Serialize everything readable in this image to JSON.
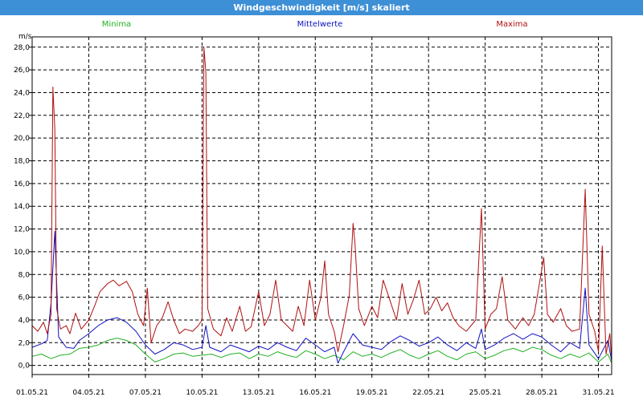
{
  "window": {
    "title": "Windgeschwindigkeit [m/s] skaliert"
  },
  "chart_data": {
    "type": "line",
    "title": "Windgeschwindigkeit [m/s] skaliert",
    "ylabel": "m/s",
    "xlabel": "",
    "ylim": [
      -0.8,
      28.9
    ],
    "xlim": [
      0,
      30.7
    ],
    "grid": true,
    "legend_placement": "top",
    "y_ticks": [
      "0,0",
      "2,0",
      "4,0",
      "6,0",
      "8,0",
      "10,0",
      "12,0",
      "14,0",
      "16,0",
      "18,0",
      "20,0",
      "22,0",
      "24,0",
      "26,0",
      "28,0"
    ],
    "y_tick_values": [
      0,
      2,
      4,
      6,
      8,
      10,
      12,
      14,
      16,
      18,
      20,
      22,
      24,
      26,
      28
    ],
    "x_ticks": [
      "01.05.21",
      "04.05.21",
      "07.05.21",
      "10.05.21",
      "13.05.21",
      "16.05.21",
      "19.05.21",
      "22.05.21",
      "25.05.21",
      "28.05.21",
      "31.05.21"
    ],
    "x_tick_values": [
      0,
      3,
      6,
      9,
      12,
      15,
      18,
      21,
      24,
      27,
      30
    ],
    "series": [
      {
        "name": "Minima",
        "color": "#22b022",
        "points": [
          [
            0,
            0.8
          ],
          [
            0.5,
            1.0
          ],
          [
            1,
            0.6
          ],
          [
            1.5,
            0.9
          ],
          [
            2,
            1.0
          ],
          [
            2.5,
            1.5
          ],
          [
            3,
            1.6
          ],
          [
            3.5,
            1.8
          ],
          [
            4,
            2.2
          ],
          [
            4.5,
            2.4
          ],
          [
            5,
            2.2
          ],
          [
            5.5,
            1.8
          ],
          [
            6,
            1.0
          ],
          [
            6.5,
            0.3
          ],
          [
            7,
            0.6
          ],
          [
            7.5,
            1.0
          ],
          [
            8,
            1.1
          ],
          [
            8.5,
            0.8
          ],
          [
            9,
            0.9
          ],
          [
            9.5,
            1.0
          ],
          [
            10,
            0.7
          ],
          [
            10.5,
            1.0
          ],
          [
            11,
            1.1
          ],
          [
            11.5,
            0.6
          ],
          [
            12,
            1.0
          ],
          [
            12.5,
            0.8
          ],
          [
            13,
            1.2
          ],
          [
            13.5,
            0.9
          ],
          [
            14,
            0.7
          ],
          [
            14.5,
            1.3
          ],
          [
            15,
            1.0
          ],
          [
            15.5,
            0.6
          ],
          [
            16,
            0.9
          ],
          [
            16.5,
            0.5
          ],
          [
            17,
            1.2
          ],
          [
            17.5,
            0.8
          ],
          [
            18,
            1.0
          ],
          [
            18.5,
            0.7
          ],
          [
            19,
            1.1
          ],
          [
            19.5,
            1.4
          ],
          [
            20,
            0.9
          ],
          [
            20.5,
            0.6
          ],
          [
            21,
            1.0
          ],
          [
            21.5,
            1.3
          ],
          [
            22,
            0.8
          ],
          [
            22.5,
            0.5
          ],
          [
            23,
            1.0
          ],
          [
            23.5,
            1.2
          ],
          [
            24,
            0.6
          ],
          [
            24.5,
            0.9
          ],
          [
            25,
            1.3
          ],
          [
            25.5,
            1.5
          ],
          [
            26,
            1.2
          ],
          [
            26.5,
            1.6
          ],
          [
            27,
            1.4
          ],
          [
            27.5,
            0.9
          ],
          [
            28,
            0.6
          ],
          [
            28.5,
            1.0
          ],
          [
            29,
            0.7
          ],
          [
            29.5,
            1.1
          ],
          [
            30,
            0.3
          ],
          [
            30.5,
            1.0
          ],
          [
            30.7,
            0.2
          ]
        ]
      },
      {
        "name": "Mittelwerte",
        "color": "#1010c0",
        "points": [
          [
            0,
            1.6
          ],
          [
            0.5,
            1.9
          ],
          [
            0.8,
            2.2
          ],
          [
            1,
            5.5
          ],
          [
            1.2,
            11.8
          ],
          [
            1.4,
            2.5
          ],
          [
            1.8,
            1.6
          ],
          [
            2.2,
            1.5
          ],
          [
            2.5,
            2.2
          ],
          [
            3,
            2.8
          ],
          [
            3.5,
            3.5
          ],
          [
            4,
            4.0
          ],
          [
            4.5,
            4.2
          ],
          [
            5,
            3.8
          ],
          [
            5.5,
            3.0
          ],
          [
            6,
            1.8
          ],
          [
            6.5,
            1.0
          ],
          [
            7,
            1.4
          ],
          [
            7.5,
            2.0
          ],
          [
            8,
            1.8
          ],
          [
            8.5,
            1.4
          ],
          [
            9,
            1.6
          ],
          [
            9.2,
            3.5
          ],
          [
            9.4,
            1.6
          ],
          [
            10,
            1.2
          ],
          [
            10.5,
            1.8
          ],
          [
            11,
            1.5
          ],
          [
            11.5,
            1.2
          ],
          [
            12,
            1.7
          ],
          [
            12.5,
            1.4
          ],
          [
            13,
            2.0
          ],
          [
            13.5,
            1.6
          ],
          [
            14,
            1.3
          ],
          [
            14.5,
            2.4
          ],
          [
            15,
            1.8
          ],
          [
            15.5,
            1.2
          ],
          [
            16,
            1.6
          ],
          [
            16.2,
            0.2
          ],
          [
            16.5,
            1.2
          ],
          [
            17,
            2.8
          ],
          [
            17.5,
            1.8
          ],
          [
            18,
            1.6
          ],
          [
            18.5,
            1.4
          ],
          [
            19,
            2.1
          ],
          [
            19.5,
            2.6
          ],
          [
            20,
            2.2
          ],
          [
            20.5,
            1.7
          ],
          [
            21,
            2.0
          ],
          [
            21.5,
            2.5
          ],
          [
            22,
            1.8
          ],
          [
            22.5,
            1.3
          ],
          [
            23,
            2.0
          ],
          [
            23.5,
            1.5
          ],
          [
            23.8,
            3.2
          ],
          [
            24,
            1.4
          ],
          [
            24.5,
            1.8
          ],
          [
            25,
            2.4
          ],
          [
            25.5,
            2.8
          ],
          [
            26,
            2.3
          ],
          [
            26.5,
            2.8
          ],
          [
            27,
            2.5
          ],
          [
            27.5,
            1.8
          ],
          [
            28,
            1.2
          ],
          [
            28.5,
            2.0
          ],
          [
            29,
            1.5
          ],
          [
            29.3,
            6.8
          ],
          [
            29.5,
            1.8
          ],
          [
            30,
            0.6
          ],
          [
            30.5,
            2.2
          ],
          [
            30.7,
            0.4
          ]
        ]
      },
      {
        "name": "Maxima",
        "color": "#b01010",
        "points": [
          [
            0,
            3.5
          ],
          [
            0.3,
            3.0
          ],
          [
            0.6,
            3.8
          ],
          [
            0.8,
            2.8
          ],
          [
            1.0,
            4.5
          ],
          [
            1.1,
            24.5
          ],
          [
            1.2,
            20.8
          ],
          [
            1.3,
            5.0
          ],
          [
            1.5,
            3.2
          ],
          [
            1.8,
            3.5
          ],
          [
            2.0,
            2.8
          ],
          [
            2.3,
            4.6
          ],
          [
            2.6,
            3.2
          ],
          [
            3.0,
            4.0
          ],
          [
            3.3,
            5.2
          ],
          [
            3.6,
            6.5
          ],
          [
            4.0,
            7.2
          ],
          [
            4.3,
            7.5
          ],
          [
            4.6,
            7.0
          ],
          [
            5.0,
            7.4
          ],
          [
            5.3,
            6.5
          ],
          [
            5.6,
            4.5
          ],
          [
            5.9,
            3.5
          ],
          [
            6.1,
            6.8
          ],
          [
            6.3,
            2.0
          ],
          [
            6.6,
            3.5
          ],
          [
            6.9,
            4.2
          ],
          [
            7.2,
            5.6
          ],
          [
            7.5,
            4.0
          ],
          [
            7.8,
            2.8
          ],
          [
            8.1,
            3.2
          ],
          [
            8.5,
            3.0
          ],
          [
            8.8,
            3.5
          ],
          [
            9.0,
            4.0
          ],
          [
            9.1,
            28.0
          ],
          [
            9.2,
            25.8
          ],
          [
            9.3,
            5.0
          ],
          [
            9.6,
            3.2
          ],
          [
            10.0,
            2.6
          ],
          [
            10.3,
            4.2
          ],
          [
            10.6,
            3.0
          ],
          [
            11.0,
            5.2
          ],
          [
            11.3,
            3.0
          ],
          [
            11.6,
            3.4
          ],
          [
            12.0,
            6.5
          ],
          [
            12.3,
            3.5
          ],
          [
            12.6,
            4.5
          ],
          [
            12.9,
            7.5
          ],
          [
            13.2,
            4.0
          ],
          [
            13.5,
            3.5
          ],
          [
            13.8,
            3.0
          ],
          [
            14.1,
            5.2
          ],
          [
            14.4,
            3.5
          ],
          [
            14.7,
            7.5
          ],
          [
            15.0,
            4.0
          ],
          [
            15.3,
            6.0
          ],
          [
            15.5,
            9.2
          ],
          [
            15.7,
            4.5
          ],
          [
            16.0,
            3.0
          ],
          [
            16.2,
            1.2
          ],
          [
            16.5,
            3.5
          ],
          [
            16.8,
            6.2
          ],
          [
            17.0,
            12.5
          ],
          [
            17.1,
            10.8
          ],
          [
            17.3,
            5.0
          ],
          [
            17.6,
            3.5
          ],
          [
            18.0,
            5.2
          ],
          [
            18.3,
            4.2
          ],
          [
            18.6,
            7.5
          ],
          [
            19.0,
            5.5
          ],
          [
            19.3,
            4.0
          ],
          [
            19.6,
            7.2
          ],
          [
            19.9,
            4.5
          ],
          [
            20.2,
            5.8
          ],
          [
            20.5,
            7.5
          ],
          [
            20.8,
            4.5
          ],
          [
            21.1,
            5.0
          ],
          [
            21.4,
            6.0
          ],
          [
            21.7,
            4.8
          ],
          [
            22.0,
            5.5
          ],
          [
            22.3,
            4.2
          ],
          [
            22.6,
            3.5
          ],
          [
            23.0,
            3.0
          ],
          [
            23.5,
            4.0
          ],
          [
            23.8,
            13.8
          ],
          [
            24.0,
            3.2
          ],
          [
            24.3,
            4.5
          ],
          [
            24.6,
            5.0
          ],
          [
            24.9,
            7.8
          ],
          [
            25.2,
            4.0
          ],
          [
            25.6,
            3.2
          ],
          [
            26.0,
            4.2
          ],
          [
            26.3,
            3.5
          ],
          [
            26.6,
            4.5
          ],
          [
            26.9,
            7.5
          ],
          [
            27.1,
            9.5
          ],
          [
            27.3,
            4.5
          ],
          [
            27.6,
            3.8
          ],
          [
            28.0,
            5.0
          ],
          [
            28.3,
            3.5
          ],
          [
            28.6,
            3.0
          ],
          [
            29.0,
            3.2
          ],
          [
            29.3,
            15.5
          ],
          [
            29.5,
            4.5
          ],
          [
            29.8,
            3.0
          ],
          [
            30.0,
            1.2
          ],
          [
            30.2,
            10.5
          ],
          [
            30.4,
            1.0
          ],
          [
            30.6,
            2.8
          ],
          [
            30.7,
            0.5
          ]
        ]
      }
    ]
  }
}
